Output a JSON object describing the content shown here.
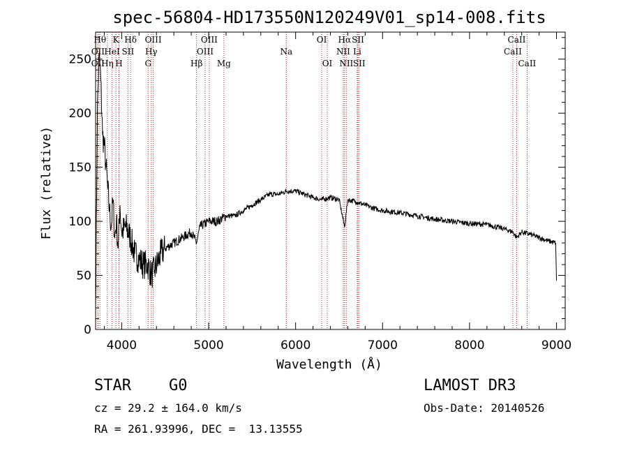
{
  "chart_data": {
    "type": "line",
    "title": "spec-56804-HD173550N120249V01_sp14-008.fits",
    "xlabel": "Wavelength (Å)",
    "ylabel": "Flux (relative)",
    "xlim": [
      3700,
      9100
    ],
    "ylim": [
      0,
      275
    ],
    "xticks": [
      4000,
      5000,
      6000,
      7000,
      8000,
      9000
    ],
    "yticks": [
      0,
      50,
      100,
      150,
      200,
      250
    ],
    "series": [
      {
        "name": "flux",
        "x": [
          3700,
          3720,
          3740,
          3760,
          3780,
          3800,
          3820,
          3840,
          3860,
          3880,
          3900,
          3920,
          3940,
          3960,
          3980,
          4000,
          4050,
          4100,
          4150,
          4200,
          4250,
          4300,
          4340,
          4380,
          4450,
          4500,
          4600,
          4700,
          4800,
          4861,
          4900,
          5000,
          5100,
          5200,
          5300,
          5400,
          5500,
          5600,
          5700,
          5800,
          5900,
          6000,
          6100,
          6200,
          6300,
          6400,
          6500,
          6563,
          6600,
          6700,
          6800,
          6900,
          7000,
          7200,
          7400,
          7600,
          7800,
          8000,
          8200,
          8400,
          8500,
          8542,
          8600,
          8700,
          8800,
          8900,
          8990,
          9000
        ],
        "y": [
          20,
          200,
          255,
          230,
          180,
          170,
          150,
          130,
          110,
          95,
          120,
          85,
          100,
          75,
          115,
          90,
          95,
          85,
          70,
          65,
          60,
          60,
          50,
          55,
          70,
          75,
          80,
          85,
          90,
          80,
          95,
          100,
          100,
          105,
          105,
          110,
          115,
          120,
          125,
          125,
          128,
          128,
          125,
          122,
          120,
          122,
          120,
          95,
          120,
          118,
          115,
          112,
          110,
          108,
          105,
          102,
          100,
          98,
          97,
          93,
          90,
          85,
          90,
          88,
          85,
          82,
          80,
          45
        ]
      }
    ],
    "line_markers": [
      {
        "label": "OII",
        "x": 3727,
        "row": 3
      },
      {
        "label": "OII",
        "x": 3727,
        "row": 2
      },
      {
        "label": "Hθ",
        "x": 3750,
        "row": 1
      },
      {
        "label": "Hη",
        "x": 3835,
        "row": 3
      },
      {
        "label": "HeI",
        "x": 3889,
        "row": 2
      },
      {
        "label": "K",
        "x": 3934,
        "row": 1
      },
      {
        "label": "H",
        "x": 3969,
        "row": 3
      },
      {
        "label": "SII",
        "x": 4072,
        "row": 2
      },
      {
        "label": "Hδ",
        "x": 4102,
        "row": 1
      },
      {
        "label": "OIII",
        "x": 4363,
        "row": 1
      },
      {
        "label": "Hγ",
        "x": 4340,
        "row": 2
      },
      {
        "label": "G",
        "x": 4304,
        "row": 3
      },
      {
        "label": "Hβ",
        "x": 4861,
        "row": 3
      },
      {
        "label": "OIII",
        "x": 4959,
        "row": 2
      },
      {
        "label": "OIII",
        "x": 5007,
        "row": 1
      },
      {
        "label": "Mg",
        "x": 5175,
        "row": 3
      },
      {
        "label": "Na",
        "x": 5893,
        "row": 2
      },
      {
        "label": "OI",
        "x": 6300,
        "row": 1
      },
      {
        "label": "OI",
        "x": 6364,
        "row": 3
      },
      {
        "label": "NII",
        "x": 6548,
        "row": 2
      },
      {
        "label": "Hα",
        "x": 6563,
        "row": 1
      },
      {
        "label": "NII",
        "x": 6583,
        "row": 3
      },
      {
        "label": "SII",
        "x": 6717,
        "row": 1
      },
      {
        "label": "SII",
        "x": 6731,
        "row": 3
      },
      {
        "label": "Li",
        "x": 6708,
        "row": 2
      },
      {
        "label": "CaII",
        "x": 8498,
        "row": 2
      },
      {
        "label": "CaII",
        "x": 8542,
        "row": 1
      },
      {
        "label": "CaII",
        "x": 8662,
        "row": 3
      }
    ]
  },
  "info": {
    "object_class": "STAR",
    "subclass": "G0",
    "survey": "LAMOST DR3",
    "cz": "cz = 29.2 ± 164.0 km/s",
    "obs_date": "Obs-Date: 20140526",
    "coords": "RA = 261.93996, DEC =  13.13555"
  }
}
